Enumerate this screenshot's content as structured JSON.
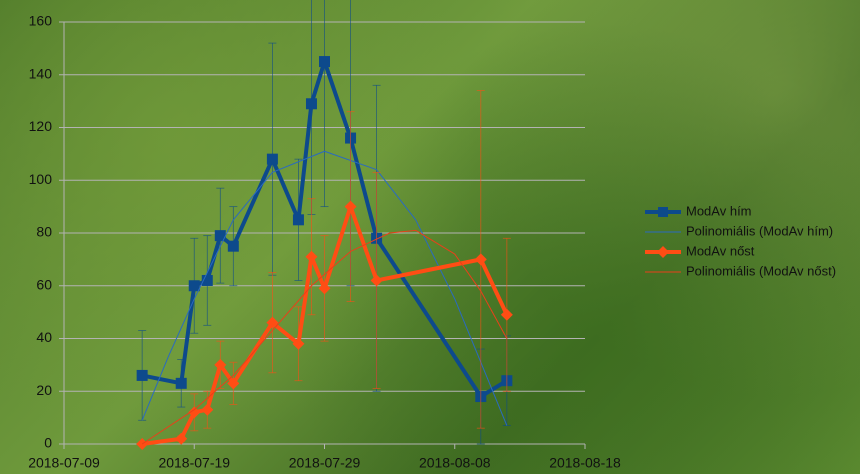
{
  "chart_data": {
    "type": "line-errorbar",
    "xlim": [
      "2018-07-09",
      "2018-08-18"
    ],
    "xticks": [
      "2018-07-09",
      "2018-07-19",
      "2018-07-29",
      "2018-08-08",
      "2018-08-18"
    ],
    "ylim": [
      0,
      160
    ],
    "yticks": [
      0,
      20,
      40,
      60,
      80,
      100,
      120,
      140,
      160
    ],
    "grid": true,
    "legend": "right",
    "series": [
      {
        "name": "ModAv hím",
        "color": "#0d4a8c",
        "marker": "square",
        "x": [
          "2018-07-15",
          "2018-07-18",
          "2018-07-19",
          "2018-07-20",
          "2018-07-21",
          "2018-07-22",
          "2018-07-25",
          "2018-07-27",
          "2018-07-28",
          "2018-07-29",
          "2018-07-31",
          "2018-08-02",
          "2018-08-10",
          "2018-08-12"
        ],
        "values": [
          26,
          23,
          60,
          62,
          79,
          75,
          108,
          85,
          129,
          145,
          116,
          78,
          18,
          24
        ],
        "errors": [
          17,
          9,
          18,
          17,
          18,
          15,
          44,
          23,
          42,
          55,
          56,
          58,
          18,
          17
        ]
      },
      {
        "name": "Polinomiális (ModAv hím)",
        "color": "#2a6ac0",
        "marker": "none",
        "x": [
          "2018-07-15",
          "2018-07-17",
          "2018-07-19",
          "2018-07-22",
          "2018-07-25",
          "2018-07-29",
          "2018-08-02",
          "2018-08-05",
          "2018-08-08",
          "2018-08-12"
        ],
        "values": [
          9,
          33,
          55,
          85,
          103,
          111,
          104,
          85,
          55,
          7
        ]
      },
      {
        "name": "ModAv nőst",
        "color": "#ff4d14",
        "marker": "diamond",
        "x": [
          "2018-07-15",
          "2018-07-18",
          "2018-07-19",
          "2018-07-20",
          "2018-07-21",
          "2018-07-22",
          "2018-07-25",
          "2018-07-27",
          "2018-07-28",
          "2018-07-29",
          "2018-07-31",
          "2018-08-02",
          "2018-08-10",
          "2018-08-12"
        ],
        "values": [
          0,
          2,
          12,
          13,
          30,
          23,
          46,
          38,
          71,
          59,
          90,
          62,
          70,
          49
        ],
        "errors": [
          0,
          1,
          7,
          7,
          9,
          8,
          19,
          14,
          22,
          20,
          36,
          41,
          64,
          29
        ]
      },
      {
        "name": "Polinomiális (ModAv nőst)",
        "color": "#e8401a",
        "marker": "none",
        "x": [
          "2018-07-15",
          "2018-07-19",
          "2018-07-22",
          "2018-07-25",
          "2018-07-28",
          "2018-07-31",
          "2018-08-03",
          "2018-08-05",
          "2018-08-08",
          "2018-08-10",
          "2018-08-12"
        ],
        "values": [
          0,
          13,
          26,
          43,
          60,
          73,
          80,
          81,
          72,
          58,
          40
        ]
      }
    ]
  }
}
